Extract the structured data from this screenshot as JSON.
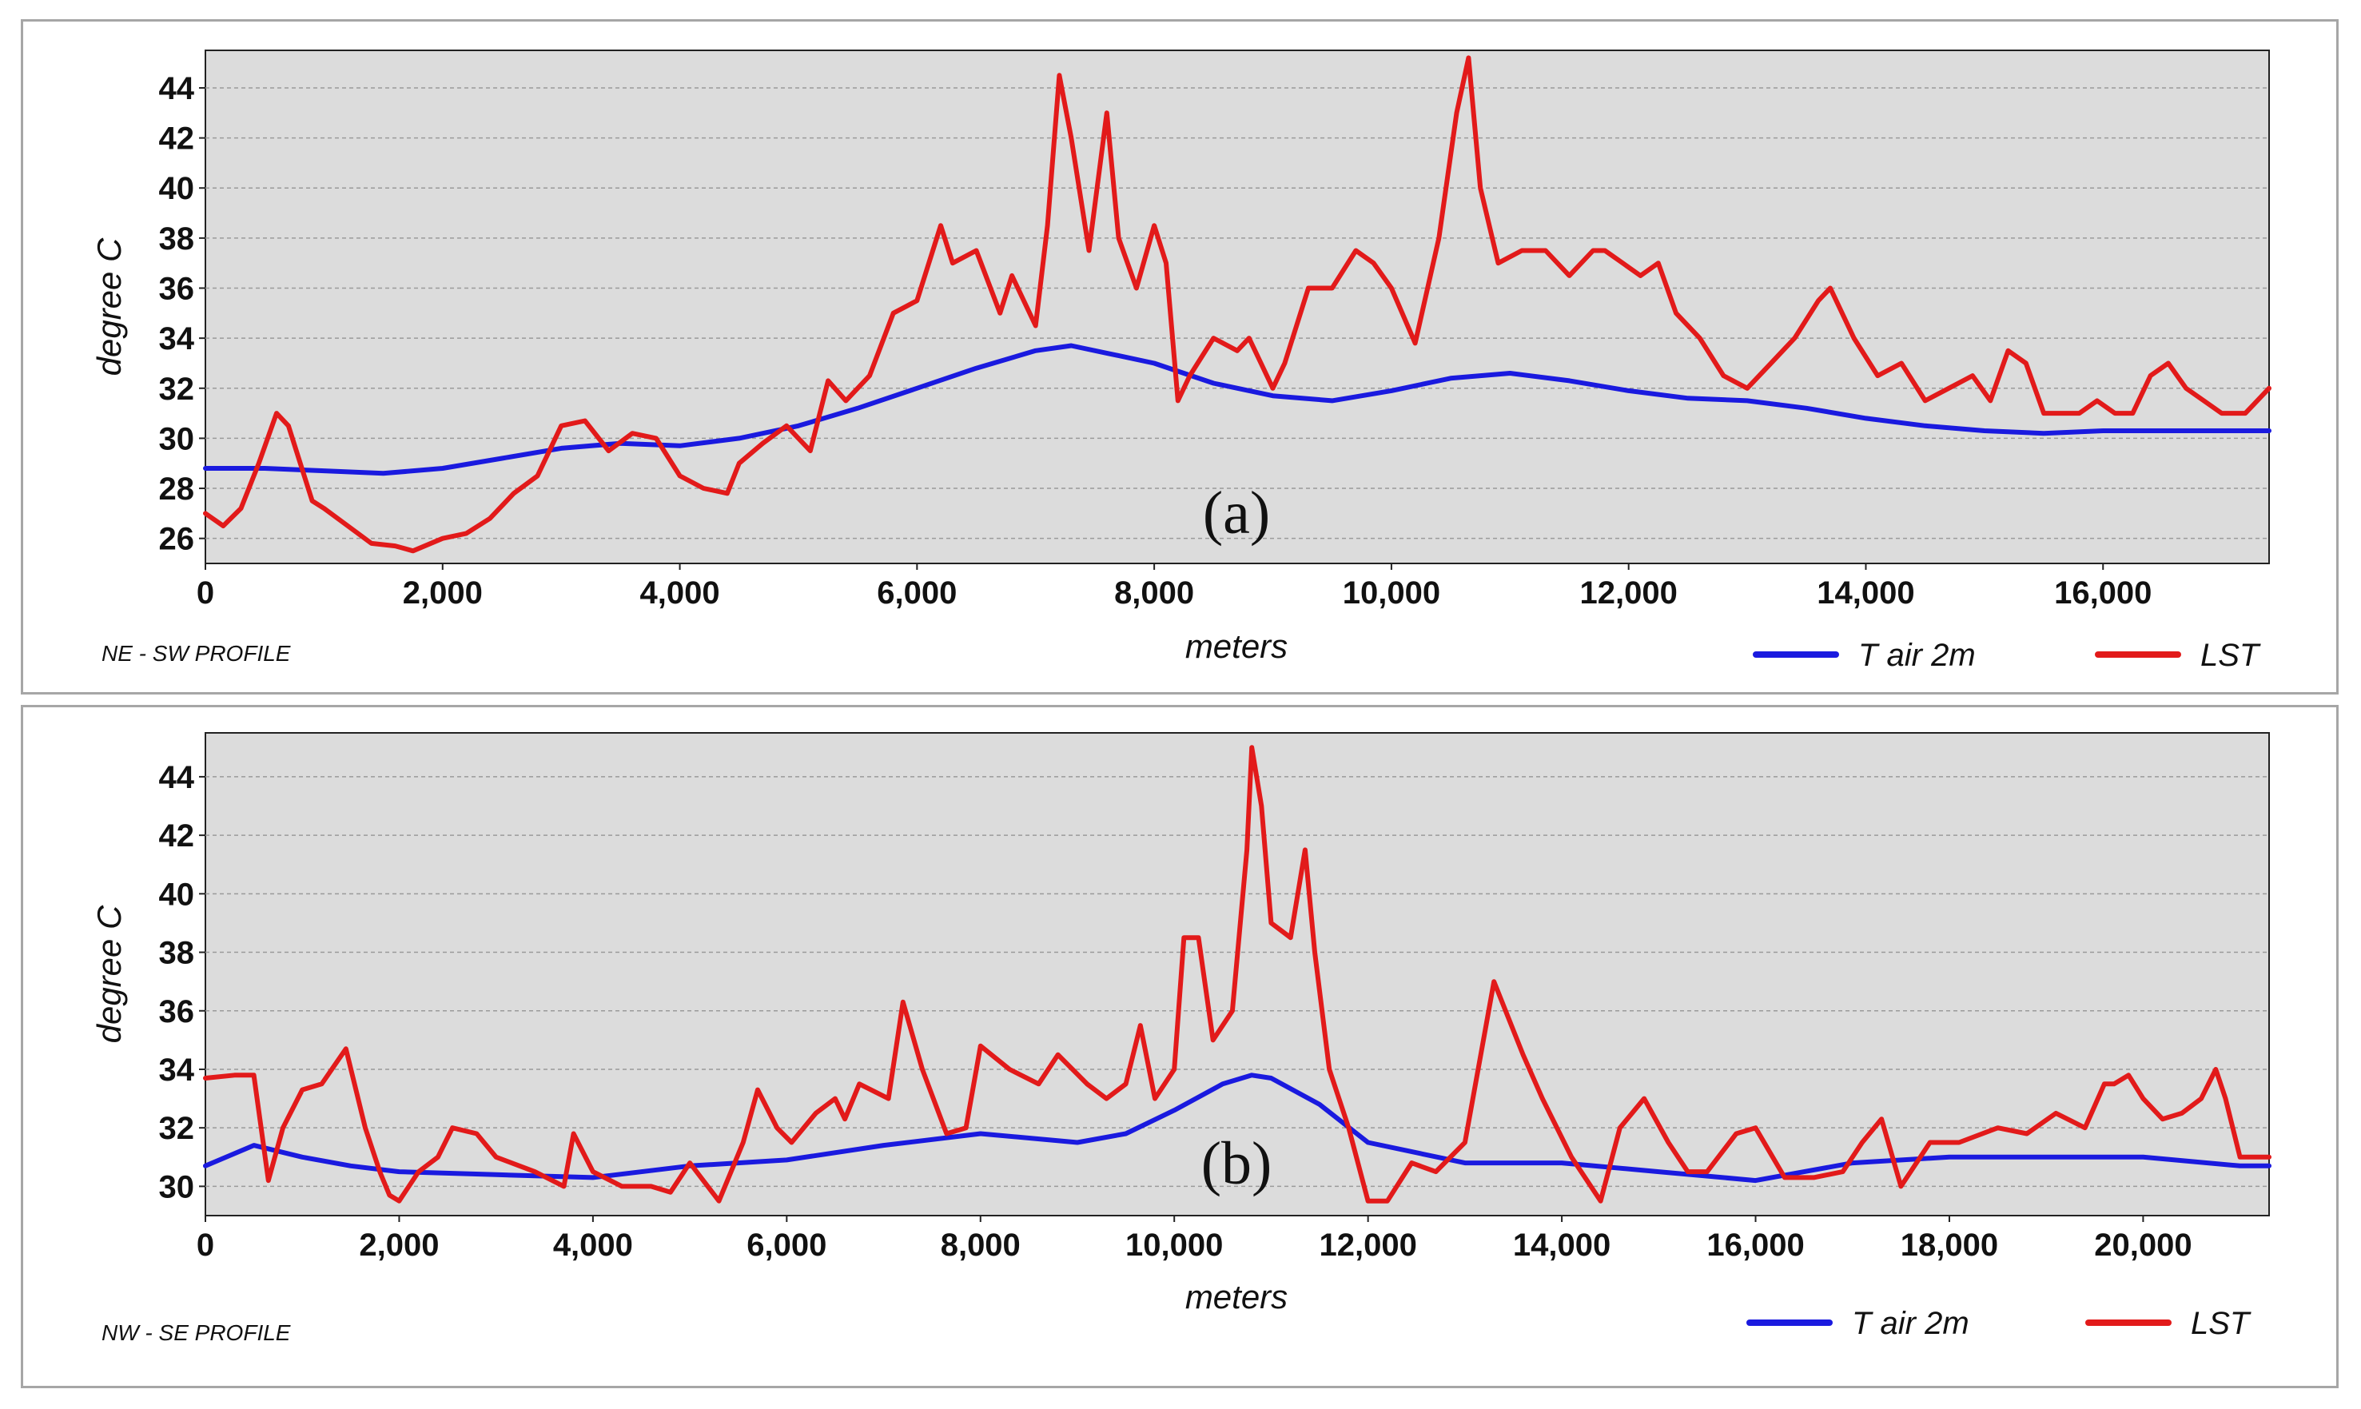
{
  "colors": {
    "t_air": "#1a1adf",
    "lst": "#e21a1a",
    "plot_bg": "#dcdcdc",
    "grid": "#9a9a9a"
  },
  "chart_data": [
    {
      "type": "line",
      "panel_label": "(a)",
      "profile_label": "NE - SW PROFILE",
      "xlabel": "meters",
      "ylabel": "degree C",
      "xlim": [
        0,
        17400
      ],
      "ylim": [
        25,
        45.5
      ],
      "x_ticks": [
        0,
        2000,
        4000,
        6000,
        8000,
        10000,
        12000,
        14000,
        16000
      ],
      "x_tick_labels": [
        "0",
        "2,000",
        "4,000",
        "6,000",
        "8,000",
        "10,000",
        "12,000",
        "14,000",
        "16,000"
      ],
      "y_ticks": [
        26,
        28,
        30,
        32,
        34,
        36,
        38,
        40,
        42,
        44
      ],
      "y_tick_labels": [
        "26",
        "28",
        "30",
        "32",
        "34",
        "36",
        "38",
        "40",
        "42",
        "44"
      ],
      "grid": true,
      "legend_position": "bottom-right",
      "series": [
        {
          "name": "T air 2m",
          "color": "#1a1adf",
          "x": [
            0,
            500,
            1000,
            1500,
            2000,
            2500,
            3000,
            3500,
            4000,
            4500,
            5000,
            5500,
            6000,
            6500,
            7000,
            7300,
            7600,
            8000,
            8500,
            9000,
            9500,
            10000,
            10500,
            11000,
            11500,
            12000,
            12500,
            13000,
            13500,
            14000,
            14500,
            15000,
            15500,
            16000,
            16500,
            17000,
            17400
          ],
          "y": [
            28.8,
            28.8,
            28.7,
            28.6,
            28.8,
            29.2,
            29.6,
            29.8,
            29.7,
            30.0,
            30.5,
            31.2,
            32.0,
            32.8,
            33.5,
            33.7,
            33.4,
            33.0,
            32.2,
            31.7,
            31.5,
            31.9,
            32.4,
            32.6,
            32.3,
            31.9,
            31.6,
            31.5,
            31.2,
            30.8,
            30.5,
            30.3,
            30.2,
            30.3,
            30.3,
            30.3,
            30.3
          ]
        },
        {
          "name": "LST",
          "color": "#e21a1a",
          "x": [
            0,
            150,
            300,
            450,
            600,
            700,
            800,
            900,
            1000,
            1200,
            1400,
            1600,
            1750,
            2000,
            2200,
            2400,
            2600,
            2800,
            3000,
            3200,
            3400,
            3600,
            3800,
            4000,
            4200,
            4400,
            4500,
            4700,
            4900,
            5100,
            5250,
            5400,
            5600,
            5800,
            6000,
            6200,
            6300,
            6500,
            6700,
            6800,
            7000,
            7100,
            7200,
            7300,
            7450,
            7600,
            7700,
            7850,
            8000,
            8100,
            8200,
            8300,
            8500,
            8700,
            8800,
            8900,
            9000,
            9100,
            9300,
            9500,
            9700,
            9850,
            10000,
            10200,
            10400,
            10550,
            10650,
            10750,
            10900,
            11100,
            11300,
            11500,
            11700,
            11800,
            11950,
            12100,
            12250,
            12400,
            12600,
            12800,
            13000,
            13200,
            13400,
            13600,
            13700,
            13900,
            14100,
            14300,
            14500,
            14700,
            14900,
            15050,
            15200,
            15350,
            15500,
            15650,
            15800,
            15950,
            16100,
            16250,
            16400,
            16550,
            16700,
            16850,
            17000,
            17200,
            17400
          ],
          "y": [
            27.0,
            26.5,
            27.2,
            29.0,
            31.0,
            30.5,
            29.0,
            27.5,
            27.2,
            26.5,
            25.8,
            25.7,
            25.5,
            26.0,
            26.2,
            26.8,
            27.8,
            28.5,
            30.5,
            30.7,
            29.5,
            30.2,
            30.0,
            28.5,
            28.0,
            27.8,
            29.0,
            29.8,
            30.5,
            29.5,
            32.3,
            31.5,
            32.5,
            35.0,
            35.5,
            38.5,
            37.0,
            37.5,
            35.0,
            36.5,
            34.5,
            38.5,
            44.5,
            42.0,
            37.5,
            43.0,
            38.0,
            36.0,
            38.5,
            37.0,
            31.5,
            32.5,
            34.0,
            33.5,
            34.0,
            33.0,
            32.0,
            33.0,
            36.0,
            36.0,
            37.5,
            37.0,
            36.0,
            33.8,
            38.0,
            43.0,
            45.2,
            40.0,
            37.0,
            37.5,
            37.5,
            36.5,
            37.5,
            37.5,
            37.0,
            36.5,
            37.0,
            35.0,
            34.0,
            32.5,
            32.0,
            33.0,
            34.0,
            35.5,
            36.0,
            34.0,
            32.5,
            33.0,
            31.5,
            32.0,
            32.5,
            31.5,
            33.5,
            33.0,
            31.0,
            31.0,
            31.0,
            31.5,
            31.0,
            31.0,
            32.5,
            33.0,
            32.0,
            31.5,
            31.0,
            31.0,
            32.0
          ]
        }
      ]
    },
    {
      "type": "line",
      "panel_label": "(b)",
      "profile_label": "NW - SE PROFILE",
      "xlabel": "meters",
      "ylabel": "degree C",
      "xlim": [
        0,
        21300
      ],
      "ylim": [
        29,
        45.5
      ],
      "x_ticks": [
        0,
        2000,
        4000,
        6000,
        8000,
        10000,
        12000,
        14000,
        16000,
        18000,
        20000
      ],
      "x_tick_labels": [
        "0",
        "2,000",
        "4,000",
        "6,000",
        "8,000",
        "10,000",
        "12,000",
        "14,000",
        "16,000",
        "18,000",
        "20,000"
      ],
      "y_ticks": [
        30,
        32,
        34,
        36,
        38,
        40,
        42,
        44
      ],
      "y_tick_labels": [
        "30",
        "32",
        "34",
        "36",
        "38",
        "40",
        "42",
        "44"
      ],
      "grid": true,
      "legend_position": "bottom-right",
      "series": [
        {
          "name": "T air 2m",
          "color": "#1a1adf",
          "x": [
            0,
            500,
            1000,
            1500,
            2000,
            3000,
            4000,
            5000,
            6000,
            7000,
            8000,
            9000,
            9500,
            10000,
            10500,
            10800,
            11000,
            11500,
            12000,
            13000,
            14000,
            15000,
            16000,
            17000,
            18000,
            19000,
            20000,
            21000,
            21300
          ],
          "y": [
            30.7,
            31.4,
            31.0,
            30.7,
            30.5,
            30.4,
            30.3,
            30.7,
            30.9,
            31.4,
            31.8,
            31.5,
            31.8,
            32.6,
            33.5,
            33.8,
            33.7,
            32.8,
            31.5,
            30.8,
            30.8,
            30.5,
            30.2,
            30.8,
            31.0,
            31.0,
            31.0,
            30.7,
            30.7
          ]
        },
        {
          "name": "LST",
          "color": "#e21a1a",
          "x": [
            0,
            300,
            500,
            650,
            800,
            1000,
            1200,
            1450,
            1650,
            1800,
            1900,
            2000,
            2200,
            2400,
            2550,
            2800,
            3000,
            3400,
            3700,
            3800,
            4000,
            4300,
            4600,
            4800,
            5000,
            5300,
            5550,
            5700,
            5900,
            6050,
            6300,
            6500,
            6600,
            6750,
            7050,
            7200,
            7400,
            7650,
            7850,
            8000,
            8300,
            8600,
            8800,
            9100,
            9300,
            9500,
            9650,
            9800,
            10000,
            10100,
            10250,
            10400,
            10600,
            10750,
            10800,
            10900,
            11000,
            11200,
            11350,
            11450,
            11600,
            11800,
            12000,
            12200,
            12450,
            12700,
            13000,
            13300,
            13600,
            13800,
            14100,
            14400,
            14600,
            14850,
            15100,
            15300,
            15500,
            15800,
            16000,
            16300,
            16600,
            16900,
            17100,
            17300,
            17500,
            17800,
            18100,
            18500,
            18800,
            19100,
            19400,
            19600,
            19700,
            19850,
            20000,
            20200,
            20400,
            20600,
            20750,
            20850,
            21000,
            21300
          ],
          "y": [
            33.7,
            33.8,
            33.8,
            30.2,
            32.0,
            33.3,
            33.5,
            34.7,
            32.0,
            30.5,
            29.7,
            29.5,
            30.5,
            31.0,
            32.0,
            31.8,
            31.0,
            30.5,
            30.0,
            31.8,
            30.5,
            30.0,
            30.0,
            29.8,
            30.8,
            29.5,
            31.5,
            33.3,
            32.0,
            31.5,
            32.5,
            33.0,
            32.3,
            33.5,
            33.0,
            36.3,
            34.0,
            31.8,
            32.0,
            34.8,
            34.0,
            33.5,
            34.5,
            33.5,
            33.0,
            33.5,
            35.5,
            33.0,
            34.0,
            38.5,
            38.5,
            35.0,
            36.0,
            41.5,
            45.0,
            43.0,
            39.0,
            38.5,
            41.5,
            38.0,
            34.0,
            32.0,
            29.5,
            29.5,
            30.8,
            30.5,
            31.5,
            37.0,
            34.5,
            33.0,
            31.0,
            29.5,
            32.0,
            33.0,
            31.5,
            30.5,
            30.5,
            31.8,
            32.0,
            30.3,
            30.3,
            30.5,
            31.5,
            32.3,
            30.0,
            31.5,
            31.5,
            32.0,
            31.8,
            32.5,
            32.0,
            33.5,
            33.5,
            33.8,
            33.0,
            32.3,
            32.5,
            33.0,
            34.0,
            33.0,
            31.0,
            31.0
          ]
        }
      ]
    }
  ]
}
